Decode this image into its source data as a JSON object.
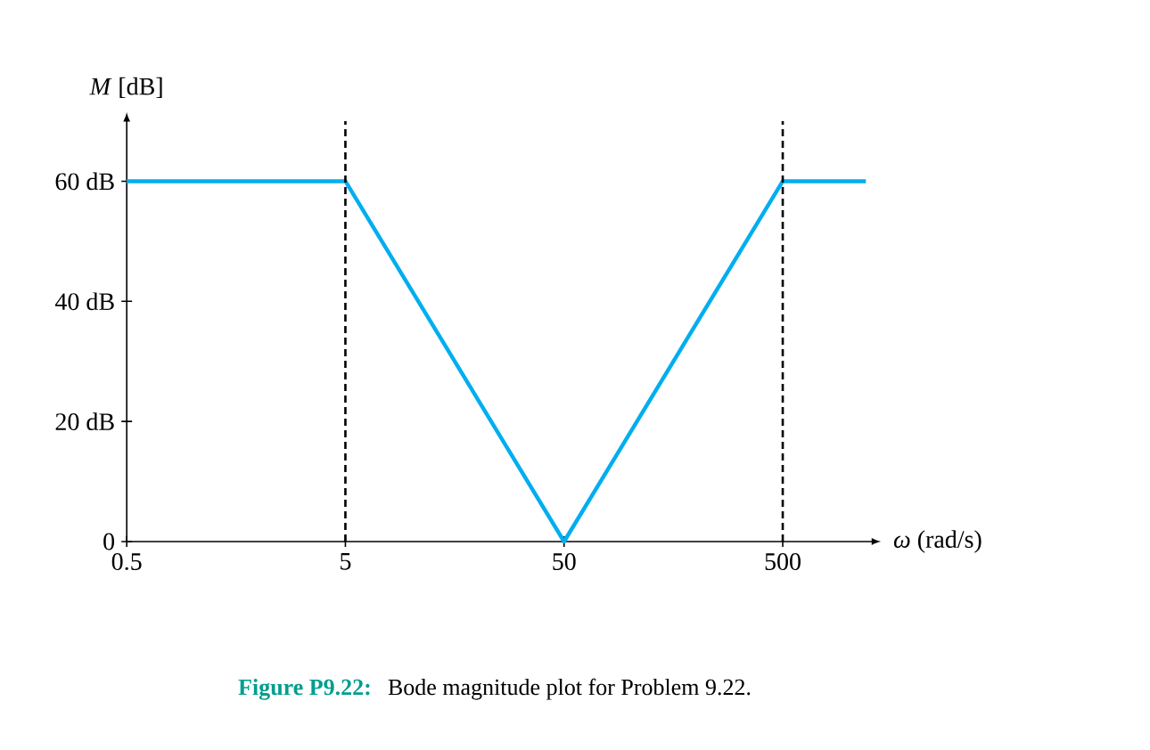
{
  "chart_data": {
    "type": "line",
    "xlabel": "*ω* (rad/s)",
    "ylabel": "*M* [dB]",
    "log": "x",
    "xlim": [
      0.5,
      1280
    ],
    "ylim": [
      0,
      70
    ],
    "xticks": [
      0.5,
      5,
      50,
      500
    ],
    "yticks": [
      {
        "value": 0,
        "label": "0"
      },
      {
        "value": 20,
        "label": "20 dB"
      },
      {
        "value": 40,
        "label": "40 dB"
      },
      {
        "value": 60,
        "label": "60 dB"
      }
    ],
    "marker": "none",
    "series": [
      {
        "color": "#00aeef",
        "x": [
          0.5,
          5,
          50,
          500,
          1200
        ],
        "values": [
          60,
          60,
          0,
          60,
          60
        ]
      }
    ],
    "ref_lines": [
      {
        "axis": "x",
        "value": 5,
        "color": "#000000",
        "line_style": "dashed"
      },
      {
        "axis": "x",
        "value": 500,
        "color": "#000000",
        "line_style": "dashed"
      }
    ],
    "annotations": [
      "Figure P9.22:",
      "Bode magnitude plot for Problem 9.22."
    ]
  }
}
